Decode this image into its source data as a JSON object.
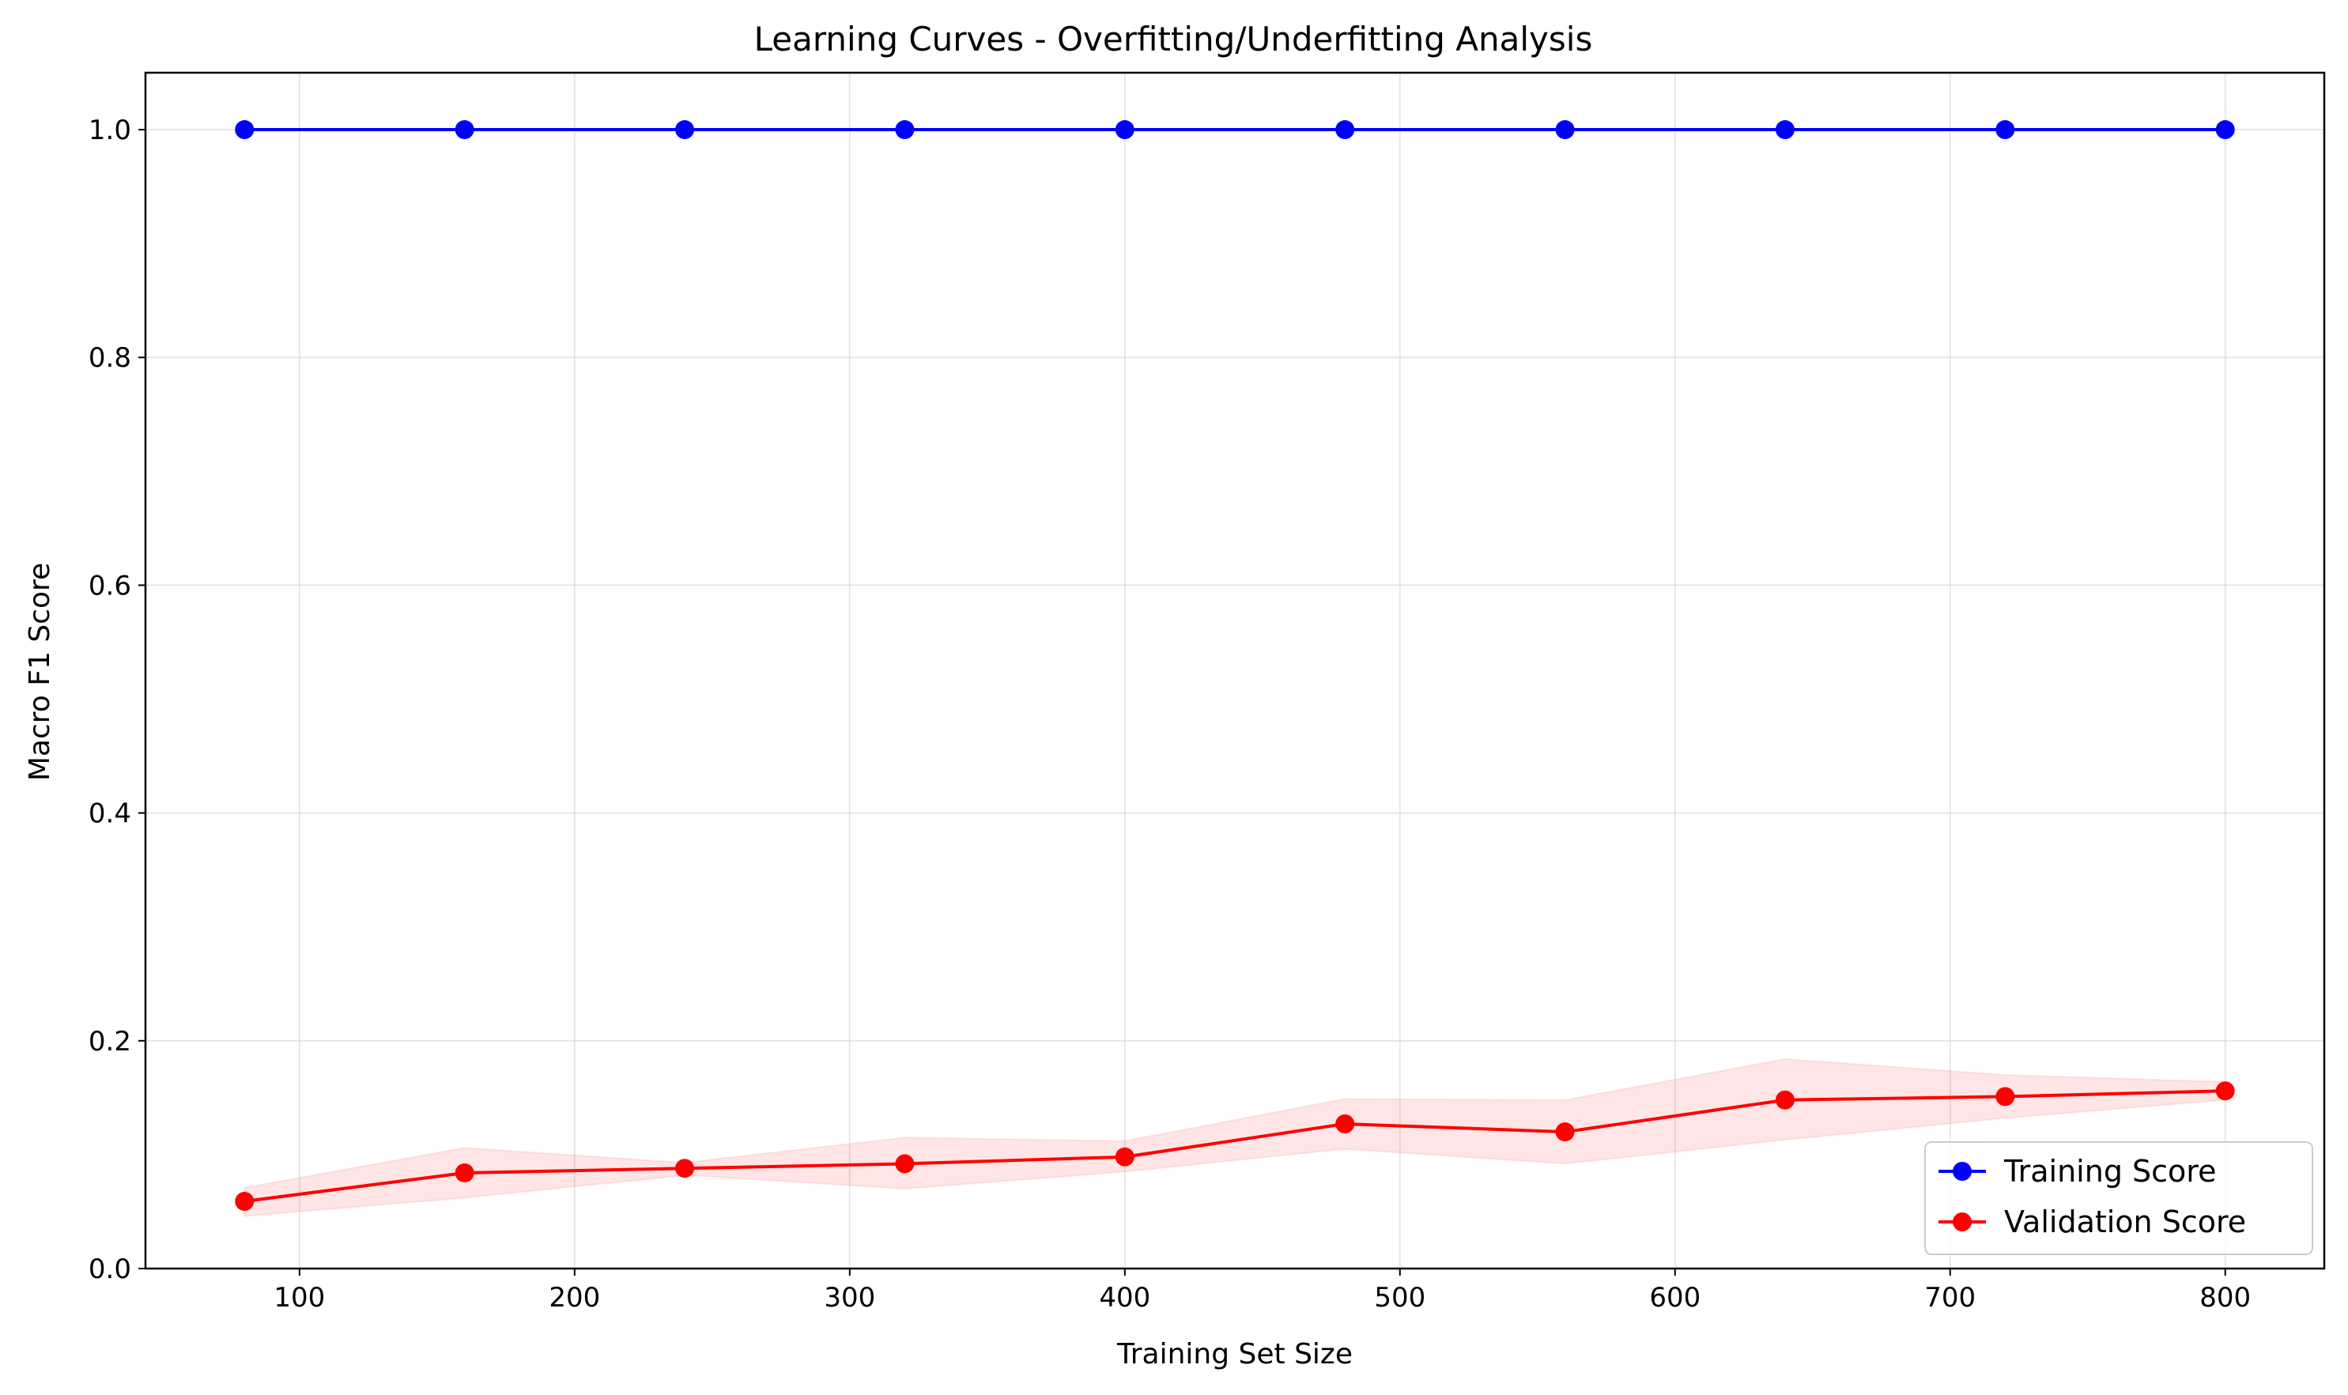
{
  "chart_data": {
    "type": "line",
    "title": "Learning Curves - Overfitting/Underfitting Analysis",
    "xlabel": "Training Set Size",
    "ylabel": "Macro F1 Score",
    "xlim": [
      44,
      836
    ],
    "ylim": [
      0.0,
      1.05
    ],
    "xticks": [
      100,
      200,
      300,
      400,
      500,
      600,
      700,
      800
    ],
    "yticks": [
      0.0,
      0.2,
      0.4,
      0.6,
      0.8,
      1.0
    ],
    "xtick_labels": [
      "100",
      "200",
      "300",
      "400",
      "500",
      "600",
      "700",
      "800"
    ],
    "ytick_labels": [
      "0.0",
      "0.2",
      "0.4",
      "0.6",
      "0.8",
      "1.0"
    ],
    "grid": true,
    "legend_position": "bottom-right",
    "x": [
      80,
      160,
      240,
      320,
      400,
      480,
      560,
      640,
      720,
      800
    ],
    "series": [
      {
        "name": "Training Score",
        "color": "#0000ff",
        "values": [
          1.0,
          1.0,
          1.0,
          1.0,
          1.0,
          1.0,
          1.0,
          1.0,
          1.0,
          1.0
        ],
        "lower": [
          1.0,
          1.0,
          1.0,
          1.0,
          1.0,
          1.0,
          1.0,
          1.0,
          1.0,
          1.0
        ],
        "upper": [
          1.0,
          1.0,
          1.0,
          1.0,
          1.0,
          1.0,
          1.0,
          1.0,
          1.0,
          1.0
        ]
      },
      {
        "name": "Validation Score",
        "color": "#ff0000",
        "values": [
          0.059,
          0.084,
          0.088,
          0.092,
          0.098,
          0.127,
          0.12,
          0.148,
          0.151,
          0.156
        ],
        "lower": [
          0.046,
          0.062,
          0.082,
          0.07,
          0.085,
          0.105,
          0.092,
          0.113,
          0.132,
          0.148
        ],
        "upper": [
          0.071,
          0.106,
          0.093,
          0.115,
          0.112,
          0.149,
          0.148,
          0.184,
          0.17,
          0.164
        ]
      }
    ]
  }
}
